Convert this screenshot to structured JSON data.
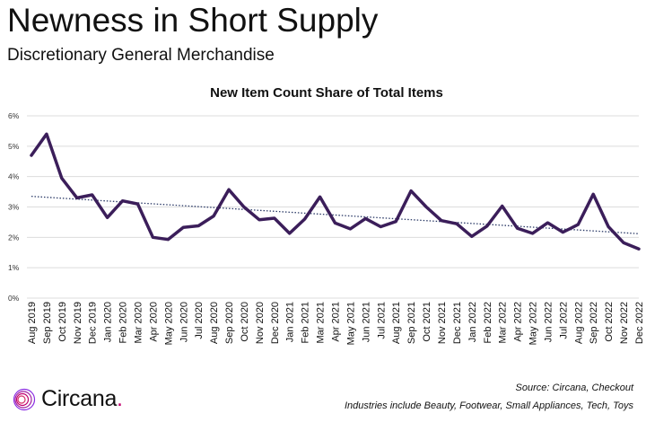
{
  "header": {
    "title": "Newness in Short Supply",
    "subtitle": "Discretionary General Merchandise"
  },
  "footer": {
    "brand": "Circana",
    "brand_dot": ".",
    "source": "Source: Circana, Checkout",
    "note": "Industries include Beauty, Footwear, Small Appliances, Tech, Toys"
  },
  "colors": {
    "line": "#3b1e5a",
    "trend": "#2b3a67",
    "grid": "#dcdcdc",
    "brand_accent": "#c2006f"
  },
  "chart_data": {
    "type": "line",
    "title": "New Item Count Share of Total Items",
    "xlabel": "",
    "ylabel": "",
    "ylim": [
      0,
      6
    ],
    "yticks": [
      "0%",
      "1%",
      "2%",
      "3%",
      "4%",
      "5%",
      "6%"
    ],
    "grid": true,
    "categories": [
      "Aug 2019",
      "Sep 2019",
      "Oct 2019",
      "Nov 2019",
      "Dec 2019",
      "Jan 2020",
      "Feb 2020",
      "Mar 2020",
      "Apr 2020",
      "May 2020",
      "Jun 2020",
      "Jul 2020",
      "Aug 2020",
      "Sep 2020",
      "Oct 2020",
      "Nov 2020",
      "Dec 2020",
      "Jan 2021",
      "Feb 2021",
      "Mar 2021",
      "Apr 2021",
      "May 2021",
      "Jun 2021",
      "Jul 2021",
      "Aug 2021",
      "Sep 2021",
      "Oct 2021",
      "Nov 2021",
      "Dec 2021",
      "Jan 2022",
      "Feb 2022",
      "Mar 2022",
      "Apr 2022",
      "May 2022",
      "Jun 2022",
      "Jul 2022",
      "Aug 2022",
      "Sep 2022",
      "Oct 2022",
      "Nov 2022",
      "Dec 2022"
    ],
    "series": [
      {
        "values": [
          4.7,
          5.4,
          3.95,
          3.3,
          3.4,
          2.65,
          3.2,
          3.1,
          2.0,
          1.93,
          2.33,
          2.38,
          2.7,
          3.57,
          3.0,
          2.58,
          2.63,
          2.13,
          2.6,
          3.33,
          2.47,
          2.28,
          2.62,
          2.35,
          2.52,
          3.53,
          3.0,
          2.55,
          2.45,
          2.03,
          2.37,
          3.03,
          2.3,
          2.13,
          2.48,
          2.17,
          2.42,
          3.42,
          2.35,
          1.82,
          1.62
        ]
      }
    ],
    "trendline": {
      "style": "dotted",
      "start": 3.35,
      "end": 2.12
    }
  }
}
